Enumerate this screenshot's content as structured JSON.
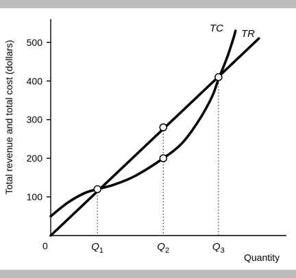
{
  "chart_data": {
    "type": "line",
    "ylabel": "Total revenue and total cost (dollars)",
    "xlabel": "Quantity",
    "origin_label": "0",
    "ylim": [
      0,
      560
    ],
    "xlim": [
      0,
      1.0
    ],
    "yticks": [
      100,
      200,
      300,
      400,
      500
    ],
    "xticks": [
      {
        "x": 0.22,
        "label": "Q",
        "sub": "1"
      },
      {
        "x": 0.53,
        "label": "Q",
        "sub": "2"
      },
      {
        "x": 0.79,
        "label": "Q",
        "sub": "3"
      }
    ],
    "series": [
      {
        "name": "TR",
        "x": [
          0.0,
          0.98
        ],
        "y": [
          0,
          510
        ]
      },
      {
        "name": "TC",
        "x": [
          0.0,
          0.08,
          0.16,
          0.22,
          0.3,
          0.4,
          0.53,
          0.62,
          0.7,
          0.76,
          0.79,
          0.83,
          0.86,
          0.87
        ],
        "y": [
          50,
          85,
          110,
          120,
          132,
          155,
          200,
          240,
          300,
          360,
          405,
          460,
          510,
          530
        ]
      }
    ],
    "points": [
      {
        "x": 0.22,
        "y": 120
      },
      {
        "x": 0.53,
        "y": 280
      },
      {
        "x": 0.53,
        "y": 200
      },
      {
        "x": 0.79,
        "y": 410
      }
    ],
    "grid": false,
    "legend": "none"
  }
}
